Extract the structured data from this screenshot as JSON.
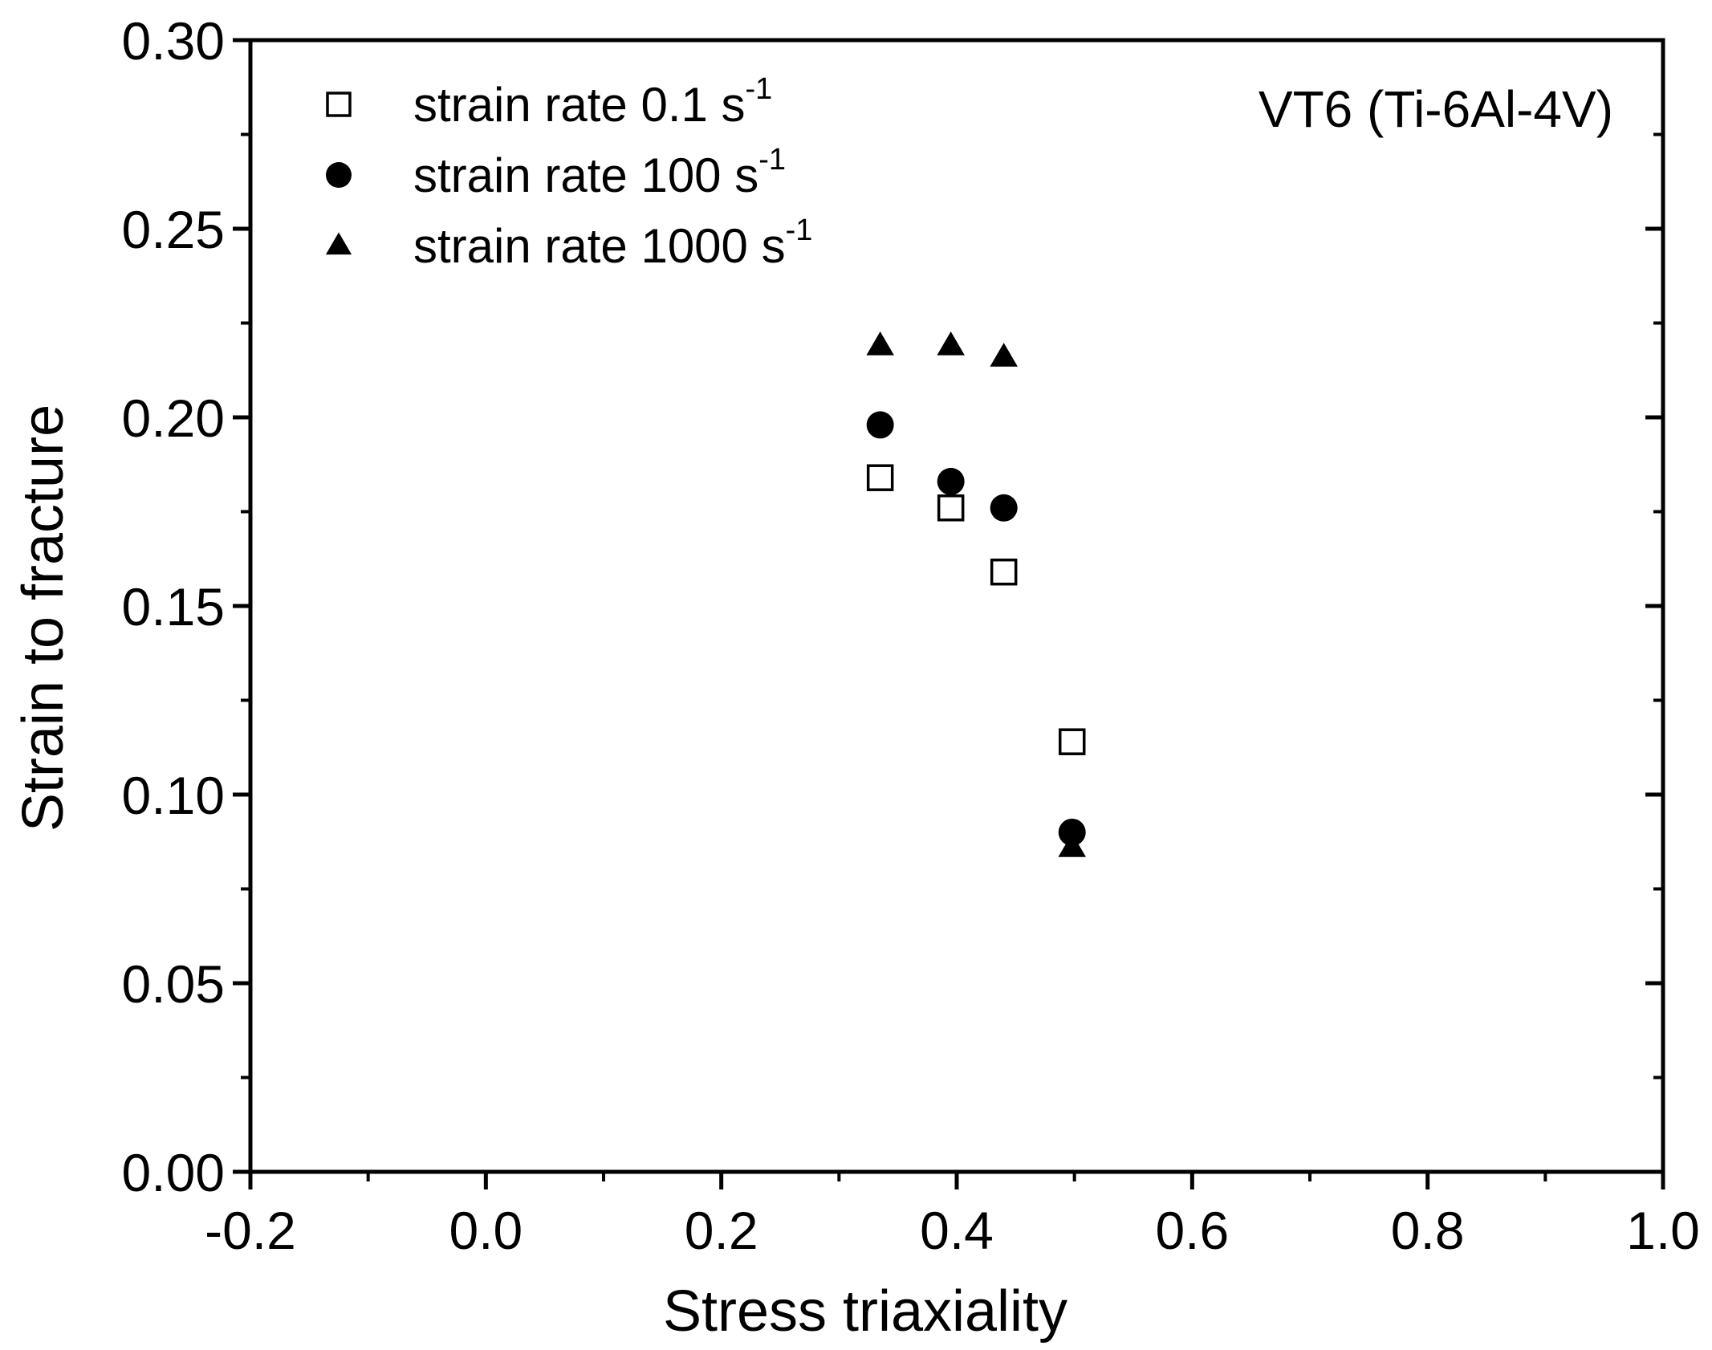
{
  "chart_data": {
    "type": "scatter",
    "title": "",
    "xlabel": "Stress triaxiality",
    "ylabel": "Strain to fracture",
    "xlim": [
      -0.2,
      1.0
    ],
    "ylim": [
      0.0,
      0.3
    ],
    "xticks": [
      -0.2,
      0.0,
      0.2,
      0.4,
      0.6,
      0.8,
      1.0
    ],
    "xtick_labels": [
      "-0.2",
      "0.0",
      "0.2",
      "0.4",
      "0.6",
      "0.8",
      "1.0"
    ],
    "yticks": [
      0.0,
      0.05,
      0.1,
      0.15,
      0.2,
      0.25,
      0.3
    ],
    "ytick_labels": [
      "0.00",
      "0.05",
      "0.10",
      "0.15",
      "0.20",
      "0.25",
      "0.30"
    ],
    "x_minor_step": 0.1,
    "y_minor_step": 0.025,
    "grid": false,
    "legend_position": "top-left",
    "annotation": "VT6 (Ti-6Al-4V)",
    "series": [
      {
        "name": "strain rate 0.1 s",
        "superscript": "-1",
        "marker": "open-square",
        "color": "#000000",
        "x": [
          0.335,
          0.395,
          0.44,
          0.498
        ],
        "y": [
          0.184,
          0.176,
          0.159,
          0.114
        ]
      },
      {
        "name": "strain rate 100 s",
        "superscript": "-1",
        "marker": "filled-circle",
        "color": "#000000",
        "x": [
          0.335,
          0.395,
          0.44,
          0.498
        ],
        "y": [
          0.198,
          0.183,
          0.176,
          0.09
        ]
      },
      {
        "name": "strain rate 1000 s",
        "superscript": "-1",
        "marker": "filled-triangle",
        "color": "#000000",
        "x": [
          0.335,
          0.395,
          0.44,
          0.498
        ],
        "y": [
          0.219,
          0.219,
          0.216,
          0.086
        ]
      }
    ]
  }
}
